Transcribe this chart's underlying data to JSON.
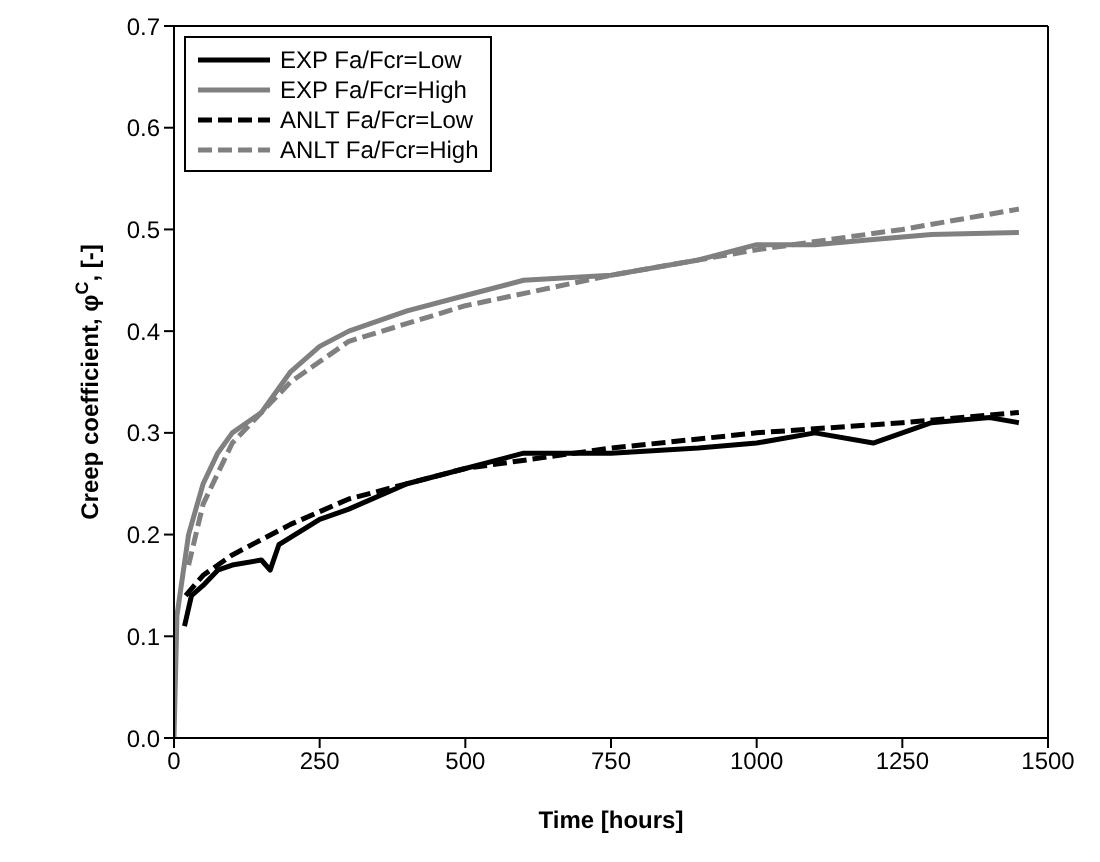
{
  "chart_data": {
    "type": "line",
    "xlabel": "Time [hours]",
    "ylabel": "Creep coefficient, φ$^{C}$, [-]",
    "xlim": [
      0,
      1500
    ],
    "xticks": [
      0,
      250,
      500,
      750,
      1000,
      1250,
      1500
    ],
    "ylim": [
      0,
      0.7
    ],
    "yticks": [
      {
        "value": 0,
        "label": "0.0"
      },
      0.1,
      0.2,
      0.3,
      0.4,
      0.5,
      0.6,
      0.7
    ],
    "grid": false,
    "legend": "top left",
    "marker": "none",
    "series": [
      {
        "name": "EXP Fa/Fcr=Low",
        "color": "#000000",
        "line_style": "solid",
        "x": [
          18,
          22,
          30,
          50,
          75,
          100,
          150,
          165,
          180,
          250,
          300,
          400,
          500,
          600,
          750,
          900,
          1000,
          1100,
          1200,
          1300,
          1400,
          1450
        ],
        "values": [
          0.11,
          0.12,
          0.14,
          0.15,
          0.165,
          0.17,
          0.175,
          0.165,
          0.19,
          0.215,
          0.225,
          0.25,
          0.265,
          0.28,
          0.28,
          0.285,
          0.29,
          0.3,
          0.29,
          0.31,
          0.315,
          0.31
        ]
      },
      {
        "name": "EXP Fa/Fcr=High",
        "color": "#808080",
        "line_style": "solid",
        "x": [
          0,
          5,
          25,
          50,
          75,
          100,
          150,
          200,
          250,
          300,
          400,
          500,
          600,
          750,
          900,
          1000,
          1100,
          1200,
          1300,
          1450
        ],
        "values": [
          0,
          0.12,
          0.2,
          0.25,
          0.28,
          0.3,
          0.32,
          0.36,
          0.385,
          0.4,
          0.42,
          0.435,
          0.45,
          0.455,
          0.47,
          0.485,
          0.485,
          0.49,
          0.495,
          0.497
        ]
      },
      {
        "name": "ANLT Fa/Fcr=Low",
        "color": "#000000",
        "line_style": "dashed",
        "x": [
          20,
          50,
          100,
          200,
          300,
          500,
          750,
          1000,
          1250,
          1450
        ],
        "values": [
          0.14,
          0.16,
          0.18,
          0.21,
          0.235,
          0.265,
          0.285,
          0.3,
          0.31,
          0.32
        ]
      },
      {
        "name": "ANLT Fa/Fcr=High",
        "color": "#808080",
        "line_style": "dashed",
        "x": [
          25,
          50,
          100,
          200,
          300,
          500,
          750,
          1000,
          1250,
          1450
        ],
        "values": [
          0.17,
          0.23,
          0.29,
          0.35,
          0.39,
          0.425,
          0.455,
          0.48,
          0.5,
          0.52
        ]
      }
    ]
  }
}
